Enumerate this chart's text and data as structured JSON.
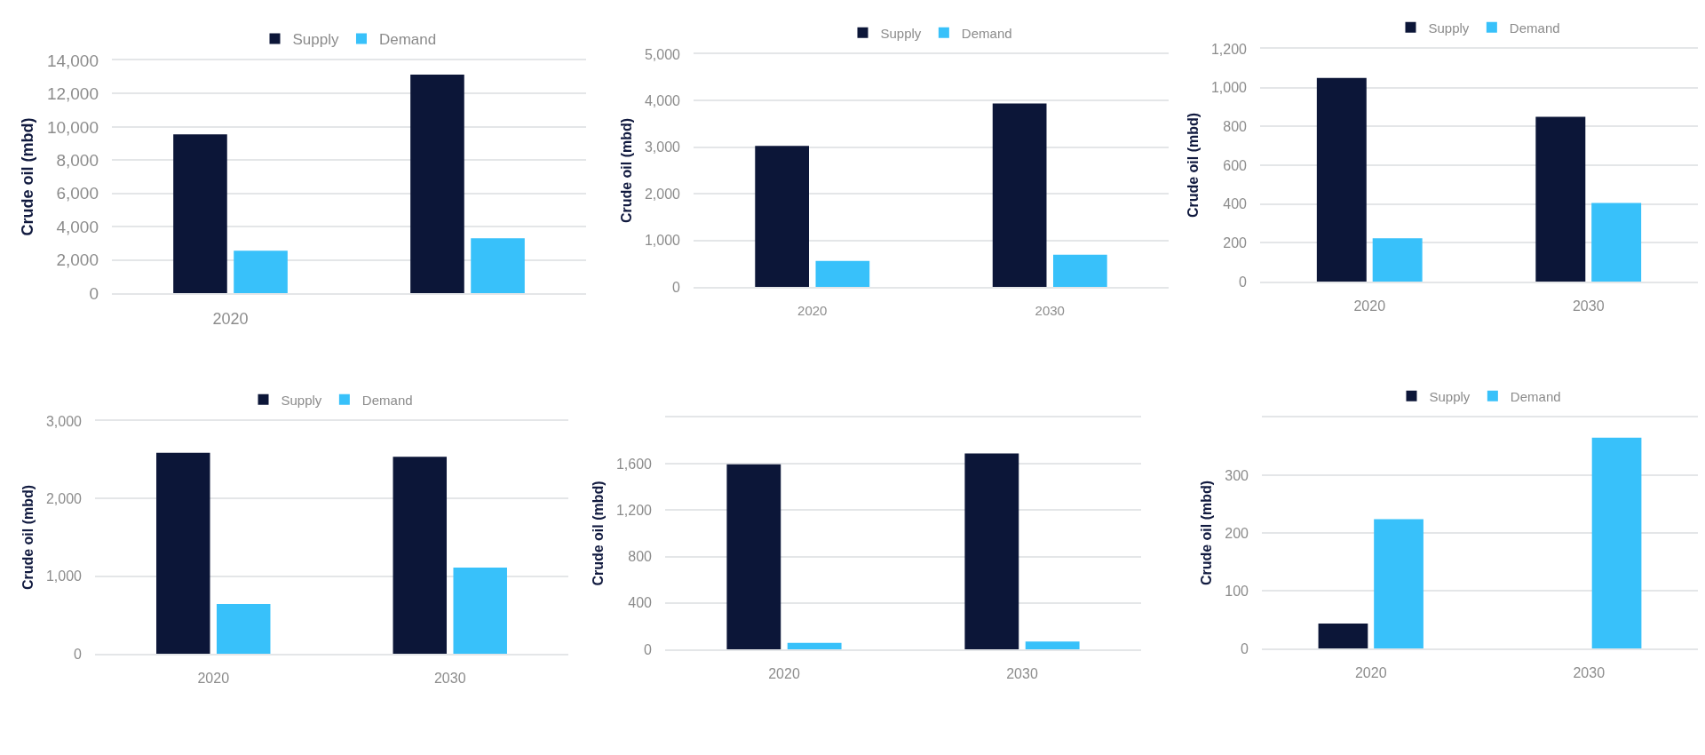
{
  "chart_data": [
    {
      "type": "bar",
      "categories": [
        "2020",
        null
      ],
      "ylabel": "Crude oil (mbd)",
      "ylim": [
        0,
        14000
      ],
      "yticks": [
        0,
        {
          "value": 2000,
          "label": "2,000"
        },
        {
          "value": 4000,
          "label": "4,000"
        },
        {
          "value": 6000,
          "label": "6,000"
        },
        {
          "value": 8000,
          "label": "8,000"
        },
        {
          "value": 10000,
          "label": "10,000"
        },
        {
          "value": 12000,
          "label": "12,000"
        },
        {
          "value": 14000,
          "label": "14,000"
        }
      ],
      "grid": "y",
      "legend": "top",
      "series": [
        {
          "name": "Supply",
          "color": "#0c1638",
          "values": [
            9550,
            13150
          ]
        },
        {
          "name": "Demand",
          "color": "#38c1fa",
          "values": [
            2550,
            3300
          ]
        }
      ]
    },
    {
      "type": "bar",
      "categories": [
        "2020",
        "2030"
      ],
      "ylabel": "Crude oil (mbd)",
      "ylim": [
        0,
        5000
      ],
      "yticks": [
        0,
        {
          "value": 1000,
          "label": "1,000"
        },
        {
          "value": 2000,
          "label": "2,000"
        },
        {
          "value": 3000,
          "label": "3,000"
        },
        {
          "value": 4000,
          "label": "4,000"
        },
        {
          "value": 5000,
          "label": "5,000"
        }
      ],
      "grid": "y",
      "legend": "top",
      "series": [
        {
          "name": "Supply",
          "color": "#0c1638",
          "values": [
            3030,
            3940
          ]
        },
        {
          "name": "Demand",
          "color": "#38c1fa",
          "values": [
            560,
            690
          ]
        }
      ]
    },
    {
      "type": "bar",
      "categories": [
        "2020",
        "2030"
      ],
      "ylabel": "Crude oil (mbd)",
      "ylim": [
        0,
        1200
      ],
      "yticks": [
        0,
        200,
        400,
        600,
        800,
        {
          "value": 1000,
          "label": "1,000"
        },
        {
          "value": 1200,
          "label": "1,200"
        }
      ],
      "grid": "y",
      "legend": "top",
      "series": [
        {
          "name": "Supply",
          "color": "#0c1638",
          "values": [
            1050,
            850
          ]
        },
        {
          "name": "Demand",
          "color": "#38c1fa",
          "values": [
            223,
            405
          ]
        }
      ]
    },
    {
      "type": "bar",
      "categories": [
        "2020",
        "2030"
      ],
      "ylabel": "Crude oil (mbd)",
      "ylim": [
        0,
        3000
      ],
      "yticks": [
        0,
        {
          "value": 1000,
          "label": "1,000"
        },
        {
          "value": 2000,
          "label": "2,000"
        },
        {
          "value": 3000,
          "label": "3,000"
        }
      ],
      "grid": "y",
      "legend": "top",
      "series": [
        {
          "name": "Supply",
          "color": "#0c1638",
          "values": [
            2590,
            2540
          ]
        },
        {
          "name": "Demand",
          "color": "#38c1fa",
          "values": [
            640,
            1110
          ]
        }
      ]
    },
    {
      "type": "bar",
      "categories": [
        "2020",
        "2030"
      ],
      "ylabel": "Crude oil (mbd)",
      "ylim": [
        0,
        2000
      ],
      "yticks": [
        0,
        400,
        800,
        {
          "value": 1200,
          "label": "1,200"
        },
        {
          "value": 1600,
          "label": "1,600"
        },
        {
          "value": 2000,
          "label": null
        }
      ],
      "grid": "y",
      "series": [
        {
          "color": "#0c1638",
          "values": [
            1595,
            1690
          ]
        },
        {
          "color": "#38c1fa",
          "values": [
            55,
            68
          ]
        }
      ]
    },
    {
      "type": "bar",
      "categories": [
        "2020",
        "2030"
      ],
      "ylabel": "Crude oil (mbd)",
      "ylim": [
        0,
        400
      ],
      "yticks": [
        0,
        100,
        200,
        300,
        {
          "value": 400,
          "label": null
        }
      ],
      "grid": "y",
      "legend": "top",
      "series": [
        {
          "name": "Supply",
          "color": "#0c1638",
          "values": [
            43,
            null
          ]
        },
        {
          "name": "Demand",
          "color": "#38c1fa",
          "values": [
            224,
            365
          ]
        }
      ]
    }
  ]
}
